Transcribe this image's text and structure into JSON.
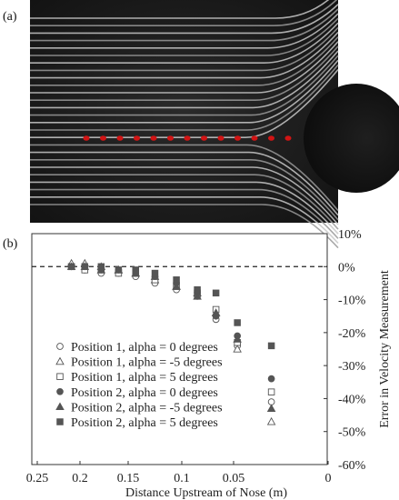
{
  "figure": {
    "panel_a_label": "(a)",
    "panel_b_label": "(b)"
  },
  "photo": {
    "description_icon": "streamline-photo-icon",
    "marker_color": "#d11414",
    "marker_count": 13
  },
  "chart_data": {
    "type": "scatter",
    "xlabel": "Distance Upstream of Nose (m)",
    "ylabel": "Error in Velocity Measurement",
    "xlim": [
      0.25,
      0
    ],
    "ylim": [
      -60,
      10
    ],
    "x_ticks": [
      "0.25",
      "0.2",
      "0.15",
      "0.1",
      "0.05",
      "0"
    ],
    "y_ticks": [
      "10%",
      "0%",
      "-10%",
      "-20%",
      "-30%",
      "-40%",
      "-50%",
      "-60%"
    ],
    "reference_line_y": 0,
    "x": [
      0.21,
      0.195,
      0.178,
      0.16,
      0.143,
      0.125,
      0.105,
      0.085,
      0.067,
      0.048,
      0.03
    ],
    "series": [
      {
        "name": "Position 1, alpha = 0 degrees",
        "marker": "circle-open",
        "values": [
          0,
          -1,
          -2,
          -2,
          -3,
          -5,
          -7,
          -9,
          -16,
          -24,
          -41
        ]
      },
      {
        "name": "Position 1, alpha = -5 degrees",
        "marker": "triangle-open",
        "values": [
          1,
          1,
          0,
          -1,
          -2,
          -4,
          -6,
          -8,
          -14,
          -25,
          -47
        ]
      },
      {
        "name": "Position 1, alpha = 5 degrees",
        "marker": "square-open",
        "values": [
          0,
          -1,
          -1,
          -2,
          -2,
          -4,
          -6,
          -8,
          -13,
          -23,
          -38
        ]
      },
      {
        "name": "Position 2, alpha = 0 degrees",
        "marker": "circle-filled",
        "values": [
          0,
          0,
          -1,
          -1,
          -2,
          -3,
          -5,
          -8,
          -15,
          -21,
          -34
        ]
      },
      {
        "name": "Position 2, alpha = -5 degrees",
        "marker": "triangle-filled",
        "values": [
          0,
          0,
          -1,
          -1,
          -2,
          -3,
          -6,
          -9,
          -14,
          -22,
          -43
        ]
      },
      {
        "name": "Position 2, alpha = 5 degrees",
        "marker": "square-filled",
        "values": [
          0,
          0,
          0,
          -1,
          -1,
          -2,
          -4,
          -7,
          -8,
          -17,
          -24
        ]
      }
    ]
  }
}
